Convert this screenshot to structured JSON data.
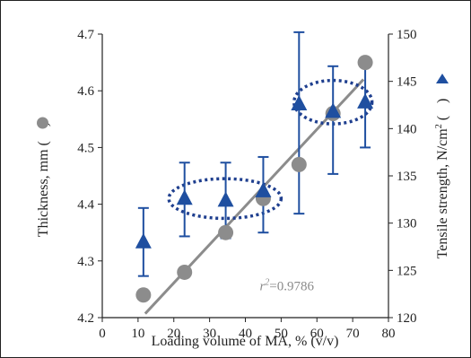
{
  "chart_data": {
    "type": "scatter",
    "title": "",
    "xlabel": "Loading volume of MA, % (v/v)",
    "ylabel_left": "Thickness, mm (",
    "ylabel_left_symbol": "circle",
    "ylabel_right_prefix": "Tensile strength, N/cm",
    "ylabel_right_sup": "2",
    "ylabel_right_symbol": "triangle",
    "xlim": [
      0,
      80
    ],
    "ylim_left": [
      4.2,
      4.7
    ],
    "ylim_right": [
      120,
      150
    ],
    "x_ticks": [
      "0",
      "10",
      "20",
      "30",
      "40",
      "50",
      "60",
      "70",
      "80"
    ],
    "y_left_ticks": [
      "4.2",
      "4.3",
      "4.4",
      "4.5",
      "4.6",
      "4.7"
    ],
    "y_right_ticks": [
      "120",
      "125",
      "130",
      "135",
      "140",
      "145",
      "150"
    ],
    "grid": false,
    "series": [
      {
        "axis": "left",
        "marker": "circle",
        "color": "#8c8c8c",
        "x": [
          11.5,
          23.0,
          34.5,
          45.0,
          55.0,
          64.5,
          73.5
        ],
        "y": [
          4.24,
          4.28,
          4.35,
          4.41,
          4.47,
          4.56,
          4.65
        ]
      },
      {
        "axis": "right",
        "marker": "triangle",
        "color": "#1f4fa0",
        "x": [
          11.5,
          23.0,
          34.5,
          45.0,
          55.0,
          64.5,
          73.5
        ],
        "y": [
          128.0,
          132.6,
          132.4,
          133.4,
          142.6,
          141.8,
          142.8
        ],
        "err_low": [
          124.4,
          128.6,
          128.4,
          129.0,
          131.0,
          135.2,
          138.0
        ],
        "err_high": [
          131.6,
          136.4,
          136.4,
          137.0,
          150.2,
          146.6,
          147.0
        ]
      }
    ],
    "fit_line": {
      "x0": 12.0,
      "y0": 4.207,
      "x1": 73.0,
      "y1": 4.62,
      "color": "#8c8c8c"
    },
    "annotation_prefix": "r",
    "annotation_sup": "2",
    "annotation_value": "=0.9786",
    "annotation_at": {
      "x": 44.0,
      "y": 4.248
    },
    "highlight_ellipses": [
      {
        "cx": 34.3,
        "cy": 132.6,
        "rx": 15.7,
        "ry": 2.1,
        "color": "#1f3f8f"
      },
      {
        "cx": 64.5,
        "cy": 142.8,
        "rx": 10.9,
        "ry": 2.3,
        "color": "#1f3f8f"
      }
    ]
  }
}
